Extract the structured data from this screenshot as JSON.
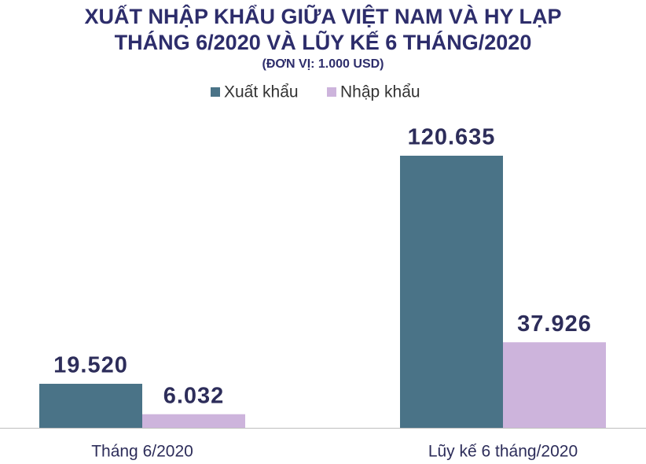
{
  "chart_data": {
    "type": "bar",
    "title": [
      "XUẤT NHẬP KHẨU GIỮA VIỆT NAM VÀ HY LẠP",
      "THÁNG 6/2020 VÀ LŨY KẾ 6 THÁNG/2020"
    ],
    "unit_note": "(ĐƠN VỊ: 1.000 USD)",
    "categories": [
      "Tháng 6/2020",
      "Lũy kế 6 tháng/2020"
    ],
    "series": [
      {
        "name": "Xuất khẩu",
        "color": "#4a7387",
        "values": [
          19520,
          120635
        ],
        "value_labels": [
          "19.520",
          "120.635"
        ]
      },
      {
        "name": "Nhập khẩu",
        "color": "#cdb4dc",
        "values": [
          6032,
          37926
        ],
        "value_labels": [
          "6.032",
          "37.926"
        ]
      }
    ]
  }
}
